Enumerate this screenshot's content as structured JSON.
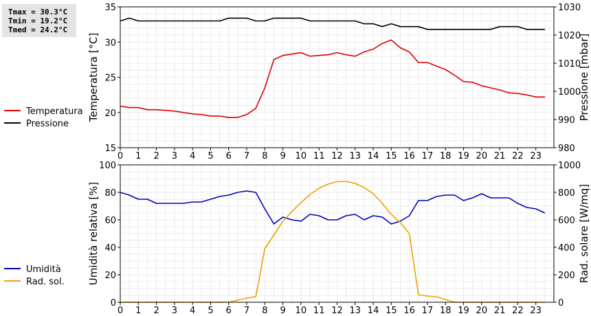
{
  "stats": {
    "tmax": "Tmax = 30.3°C",
    "tmin": "Tmin = 19.2°C",
    "tmed": "Tmed = 24.2°C"
  },
  "colors": {
    "temperature": "#dd0000",
    "pressure": "#000000",
    "humidity": "#0000bb",
    "radiation": "#f0a000",
    "grid": "#c8c8c8",
    "stats_bg": "#e4e4e4"
  },
  "chart_data": [
    {
      "type": "line",
      "ylabel": "Temperatura [°C]",
      "y2label": "Pressione [mbar]",
      "xlim": [
        0,
        24
      ],
      "ylim": [
        15,
        35
      ],
      "y2lim": [
        980,
        1030
      ],
      "x_ticks": [
        "0",
        "1",
        "2",
        "3",
        "4",
        "5",
        "6",
        "7",
        "8",
        "9",
        "10",
        "11",
        "12",
        "13",
        "14",
        "15",
        "16",
        "17",
        "18",
        "19",
        "20",
        "21",
        "22",
        "23"
      ],
      "y_ticks": [
        "15",
        "20",
        "25",
        "30",
        "35"
      ],
      "y2_ticks": [
        "980",
        "990",
        "1000",
        "1010",
        "1020",
        "1030"
      ],
      "grid": true,
      "legend": "left",
      "series": [
        {
          "name": "Temperatura",
          "axis": "left",
          "x": [
            0,
            0.5,
            1,
            1.5,
            2,
            2.5,
            3,
            3.5,
            4,
            4.5,
            5,
            5.5,
            6,
            6.5,
            7,
            7.5,
            8,
            8.5,
            9,
            9.5,
            10,
            10.5,
            11,
            11.5,
            12,
            12.5,
            13,
            13.5,
            14,
            14.5,
            15,
            15.5,
            16,
            16.5,
            17,
            17.5,
            18,
            18.5,
            19,
            19.5,
            20,
            20.5,
            21,
            21.5,
            22,
            22.5,
            23,
            23.5
          ],
          "values": [
            20.9,
            20.7,
            20.7,
            20.4,
            20.4,
            20.3,
            20.2,
            20.0,
            19.8,
            19.7,
            19.5,
            19.5,
            19.3,
            19.3,
            19.7,
            20.6,
            23.5,
            27.5,
            28.1,
            28.3,
            28.5,
            28.0,
            28.1,
            28.2,
            28.5,
            28.2,
            28.0,
            28.6,
            29.0,
            29.8,
            30.3,
            29.2,
            28.6,
            27.1,
            27.1,
            26.6,
            26.1,
            25.3,
            24.4,
            24.3,
            23.8,
            23.5,
            23.2,
            22.8,
            22.7,
            22.5,
            22.2,
            22.2
          ]
        },
        {
          "name": "Pressione",
          "axis": "right",
          "x": [
            0,
            0.5,
            1,
            1.5,
            2,
            2.5,
            3,
            3.5,
            4,
            4.5,
            5,
            5.5,
            6,
            6.5,
            7,
            7.5,
            8,
            8.5,
            9,
            9.5,
            10,
            10.5,
            11,
            11.5,
            12,
            12.5,
            13,
            13.5,
            14,
            14.5,
            15,
            15.5,
            16,
            16.5,
            17,
            17.5,
            18,
            18.5,
            19,
            19.5,
            20,
            20.5,
            21,
            21.5,
            22,
            22.5,
            23,
            23.5
          ],
          "values": [
            1025,
            1026,
            1025,
            1025,
            1025,
            1025,
            1025,
            1025,
            1025,
            1025,
            1025,
            1025,
            1026,
            1026,
            1026,
            1025,
            1025,
            1026,
            1026,
            1026,
            1026,
            1025,
            1025,
            1025,
            1025,
            1025,
            1025,
            1024,
            1024,
            1023,
            1024,
            1023,
            1023,
            1023,
            1022,
            1022,
            1022,
            1022,
            1022,
            1022,
            1022,
            1022,
            1023,
            1023,
            1023,
            1022,
            1022,
            1022
          ]
        }
      ]
    },
    {
      "type": "line",
      "ylabel": "Umidità relativa [%]",
      "y2label": "Rad. solare [W/mq]",
      "xlim": [
        0,
        24
      ],
      "ylim": [
        0,
        100
      ],
      "y2lim": [
        0,
        1000
      ],
      "x_ticks": [
        "0",
        "1",
        "2",
        "3",
        "4",
        "5",
        "6",
        "7",
        "8",
        "9",
        "10",
        "11",
        "12",
        "13",
        "14",
        "15",
        "16",
        "17",
        "18",
        "19",
        "20",
        "21",
        "22",
        "23"
      ],
      "y_ticks": [
        "0",
        "20",
        "40",
        "60",
        "80",
        "100"
      ],
      "y2_ticks": [
        "0",
        "200",
        "400",
        "600",
        "800",
        "1000"
      ],
      "grid": true,
      "legend": "left",
      "series": [
        {
          "name": "Umidità",
          "axis": "left",
          "x": [
            0,
            0.5,
            1,
            1.5,
            2,
            2.5,
            3,
            3.5,
            4,
            4.5,
            5,
            5.5,
            6,
            6.5,
            7,
            7.5,
            8,
            8.5,
            9,
            9.5,
            10,
            10.5,
            11,
            11.5,
            12,
            12.5,
            13,
            13.5,
            14,
            14.5,
            15,
            15.5,
            16,
            16.5,
            17,
            17.5,
            18,
            18.5,
            19,
            19.5,
            20,
            20.5,
            21,
            21.5,
            22,
            22.5,
            23,
            23.5
          ],
          "values": [
            80,
            78,
            75,
            75,
            72,
            72,
            72,
            72,
            73,
            73,
            75,
            77,
            78,
            80,
            81,
            80,
            68,
            57,
            62,
            60,
            59,
            64,
            63,
            60,
            60,
            63,
            64,
            60,
            63,
            62,
            57,
            59,
            63,
            74,
            74,
            77,
            78,
            78,
            74,
            76,
            79,
            76,
            76,
            76,
            72,
            69,
            68,
            65
          ]
        },
        {
          "name": "Rad. sol.",
          "axis": "right",
          "x": [
            0,
            0.5,
            1,
            1.5,
            2,
            2.5,
            3,
            3.5,
            4,
            4.5,
            5,
            5.5,
            6,
            6.5,
            7,
            7.5,
            8,
            8.5,
            9,
            9.5,
            10,
            10.5,
            11,
            11.5,
            12,
            12.5,
            13,
            13.5,
            14,
            14.5,
            15,
            15.5,
            16,
            16.5,
            17,
            17.5,
            18,
            18.5,
            19,
            19.5,
            20,
            20.5,
            21,
            21.5,
            22,
            22.5,
            23,
            23.5
          ],
          "values": [
            0,
            0,
            0,
            0,
            0,
            0,
            0,
            0,
            0,
            0,
            0,
            0,
            0,
            15,
            30,
            40,
            390,
            490,
            590,
            660,
            725,
            785,
            830,
            860,
            878,
            880,
            865,
            835,
            790,
            720,
            640,
            580,
            500,
            55,
            45,
            40,
            20,
            0,
            0,
            0,
            0,
            0,
            0,
            0,
            0,
            0,
            0,
            0
          ]
        }
      ]
    }
  ]
}
